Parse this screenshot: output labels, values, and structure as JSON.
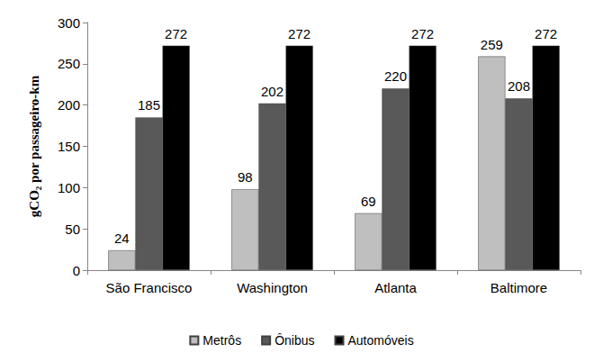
{
  "chart_data": {
    "type": "bar",
    "y_label": "gCO₂ por passageiro-km",
    "categories": [
      "São Francisco",
      "Washington",
      "Atlanta",
      "Baltimore"
    ],
    "series": [
      {
        "name": "Metrôs",
        "color": "#bfbfbf",
        "values": [
          24,
          98,
          69,
          259
        ]
      },
      {
        "name": "Ônibus",
        "color": "#595959",
        "values": [
          185,
          202,
          220,
          208
        ]
      },
      {
        "name": "Automóveis",
        "color": "#000000",
        "values": [
          272,
          272,
          272,
          272
        ]
      }
    ],
    "ylim": [
      0,
      300
    ],
    "yticks": [
      0,
      50,
      100,
      150,
      200,
      250,
      300
    ],
    "grid": false,
    "legend": "bottom",
    "data_labels": true
  }
}
